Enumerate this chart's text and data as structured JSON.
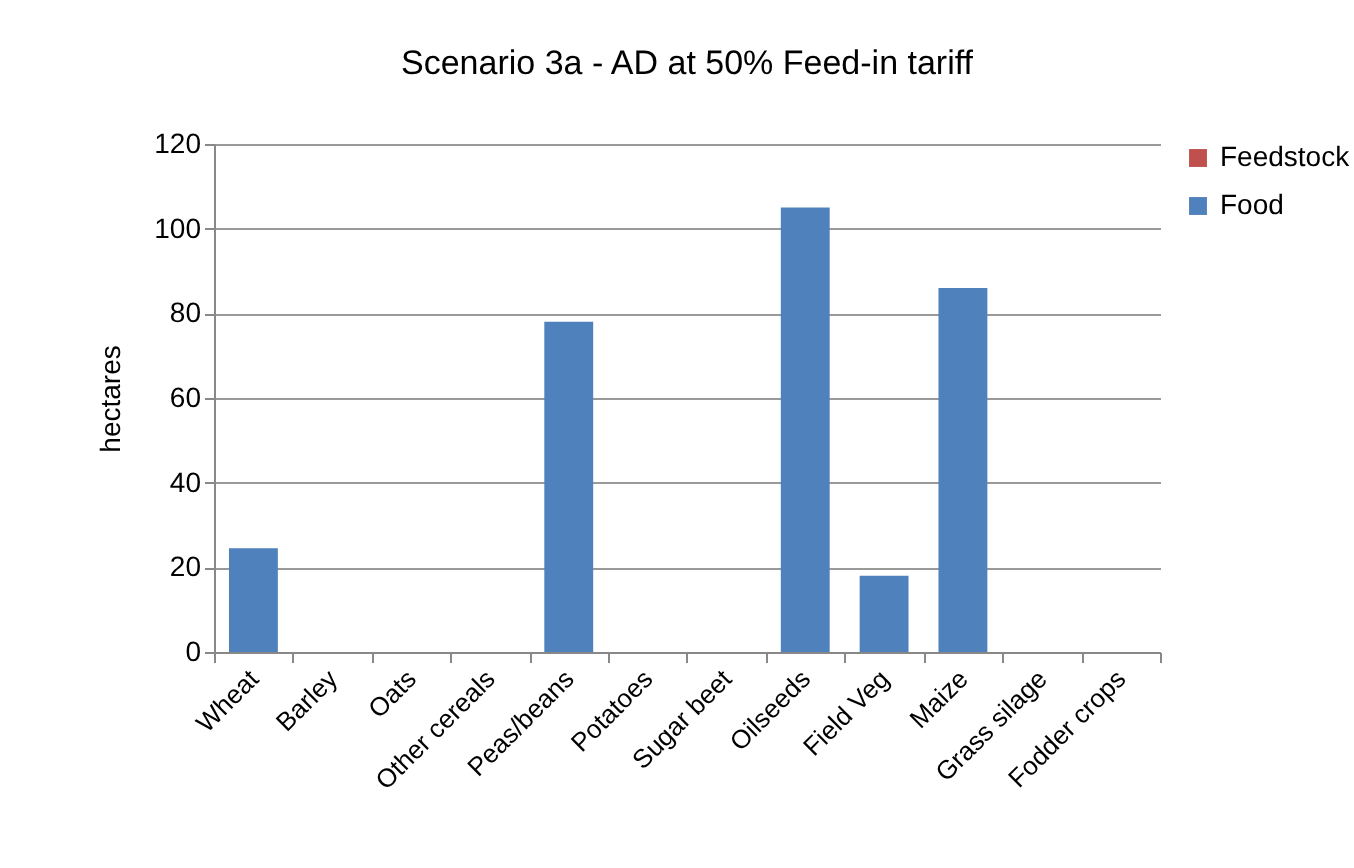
{
  "chart_data": {
    "type": "bar",
    "title": "Scenario 3a - AD at 50% Feed-in tariff",
    "ylabel": "hectares",
    "categories": [
      "Wheat",
      "Barley",
      "Oats",
      "Other cereals",
      "Peas/beans",
      "Potatoes",
      "Sugar beet",
      "Oilseeds",
      "Field Veg",
      "Maize",
      "Grass silage",
      "Fodder crops"
    ],
    "series": [
      {
        "name": "Feedstock",
        "color": "#c0504d",
        "values": [
          0,
          0,
          0,
          0,
          0,
          0,
          0,
          0,
          0,
          0,
          0,
          0
        ]
      },
      {
        "name": "Food",
        "color": "#4f81bd",
        "values": [
          24.5,
          0,
          0,
          0,
          78,
          0,
          0,
          105,
          18,
          86,
          0,
          0
        ]
      }
    ],
    "stacked": true,
    "ylim": [
      0,
      120
    ],
    "yticks": [
      0,
      20,
      40,
      60,
      80,
      100,
      120
    ],
    "grid": "y",
    "legend": "right"
  }
}
